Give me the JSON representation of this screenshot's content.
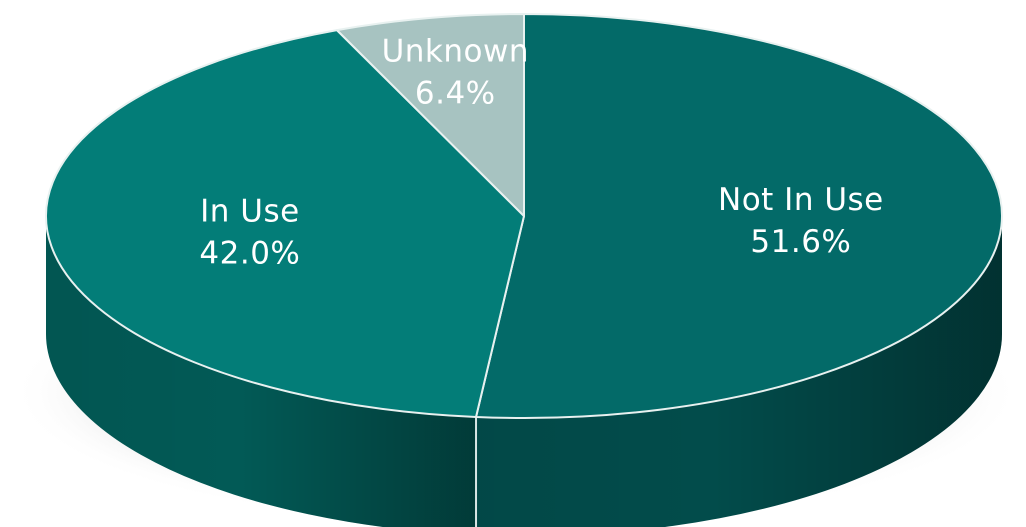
{
  "chart_data": {
    "type": "pie",
    "style": "3d",
    "title": "",
    "slices": [
      {
        "label": "Not In Use",
        "value": 51.6,
        "value_label": "51.6%",
        "color": "#036a68"
      },
      {
        "label": "In Use",
        "value": 42.0,
        "value_label": "42.0%",
        "color": "#037d78"
      },
      {
        "label": "Unknown",
        "value": 6.4,
        "value_label": "6.4%",
        "color": "#a7c3c1"
      }
    ],
    "start_angle_deg": 0,
    "direction": "clockwise",
    "legend": "none"
  }
}
